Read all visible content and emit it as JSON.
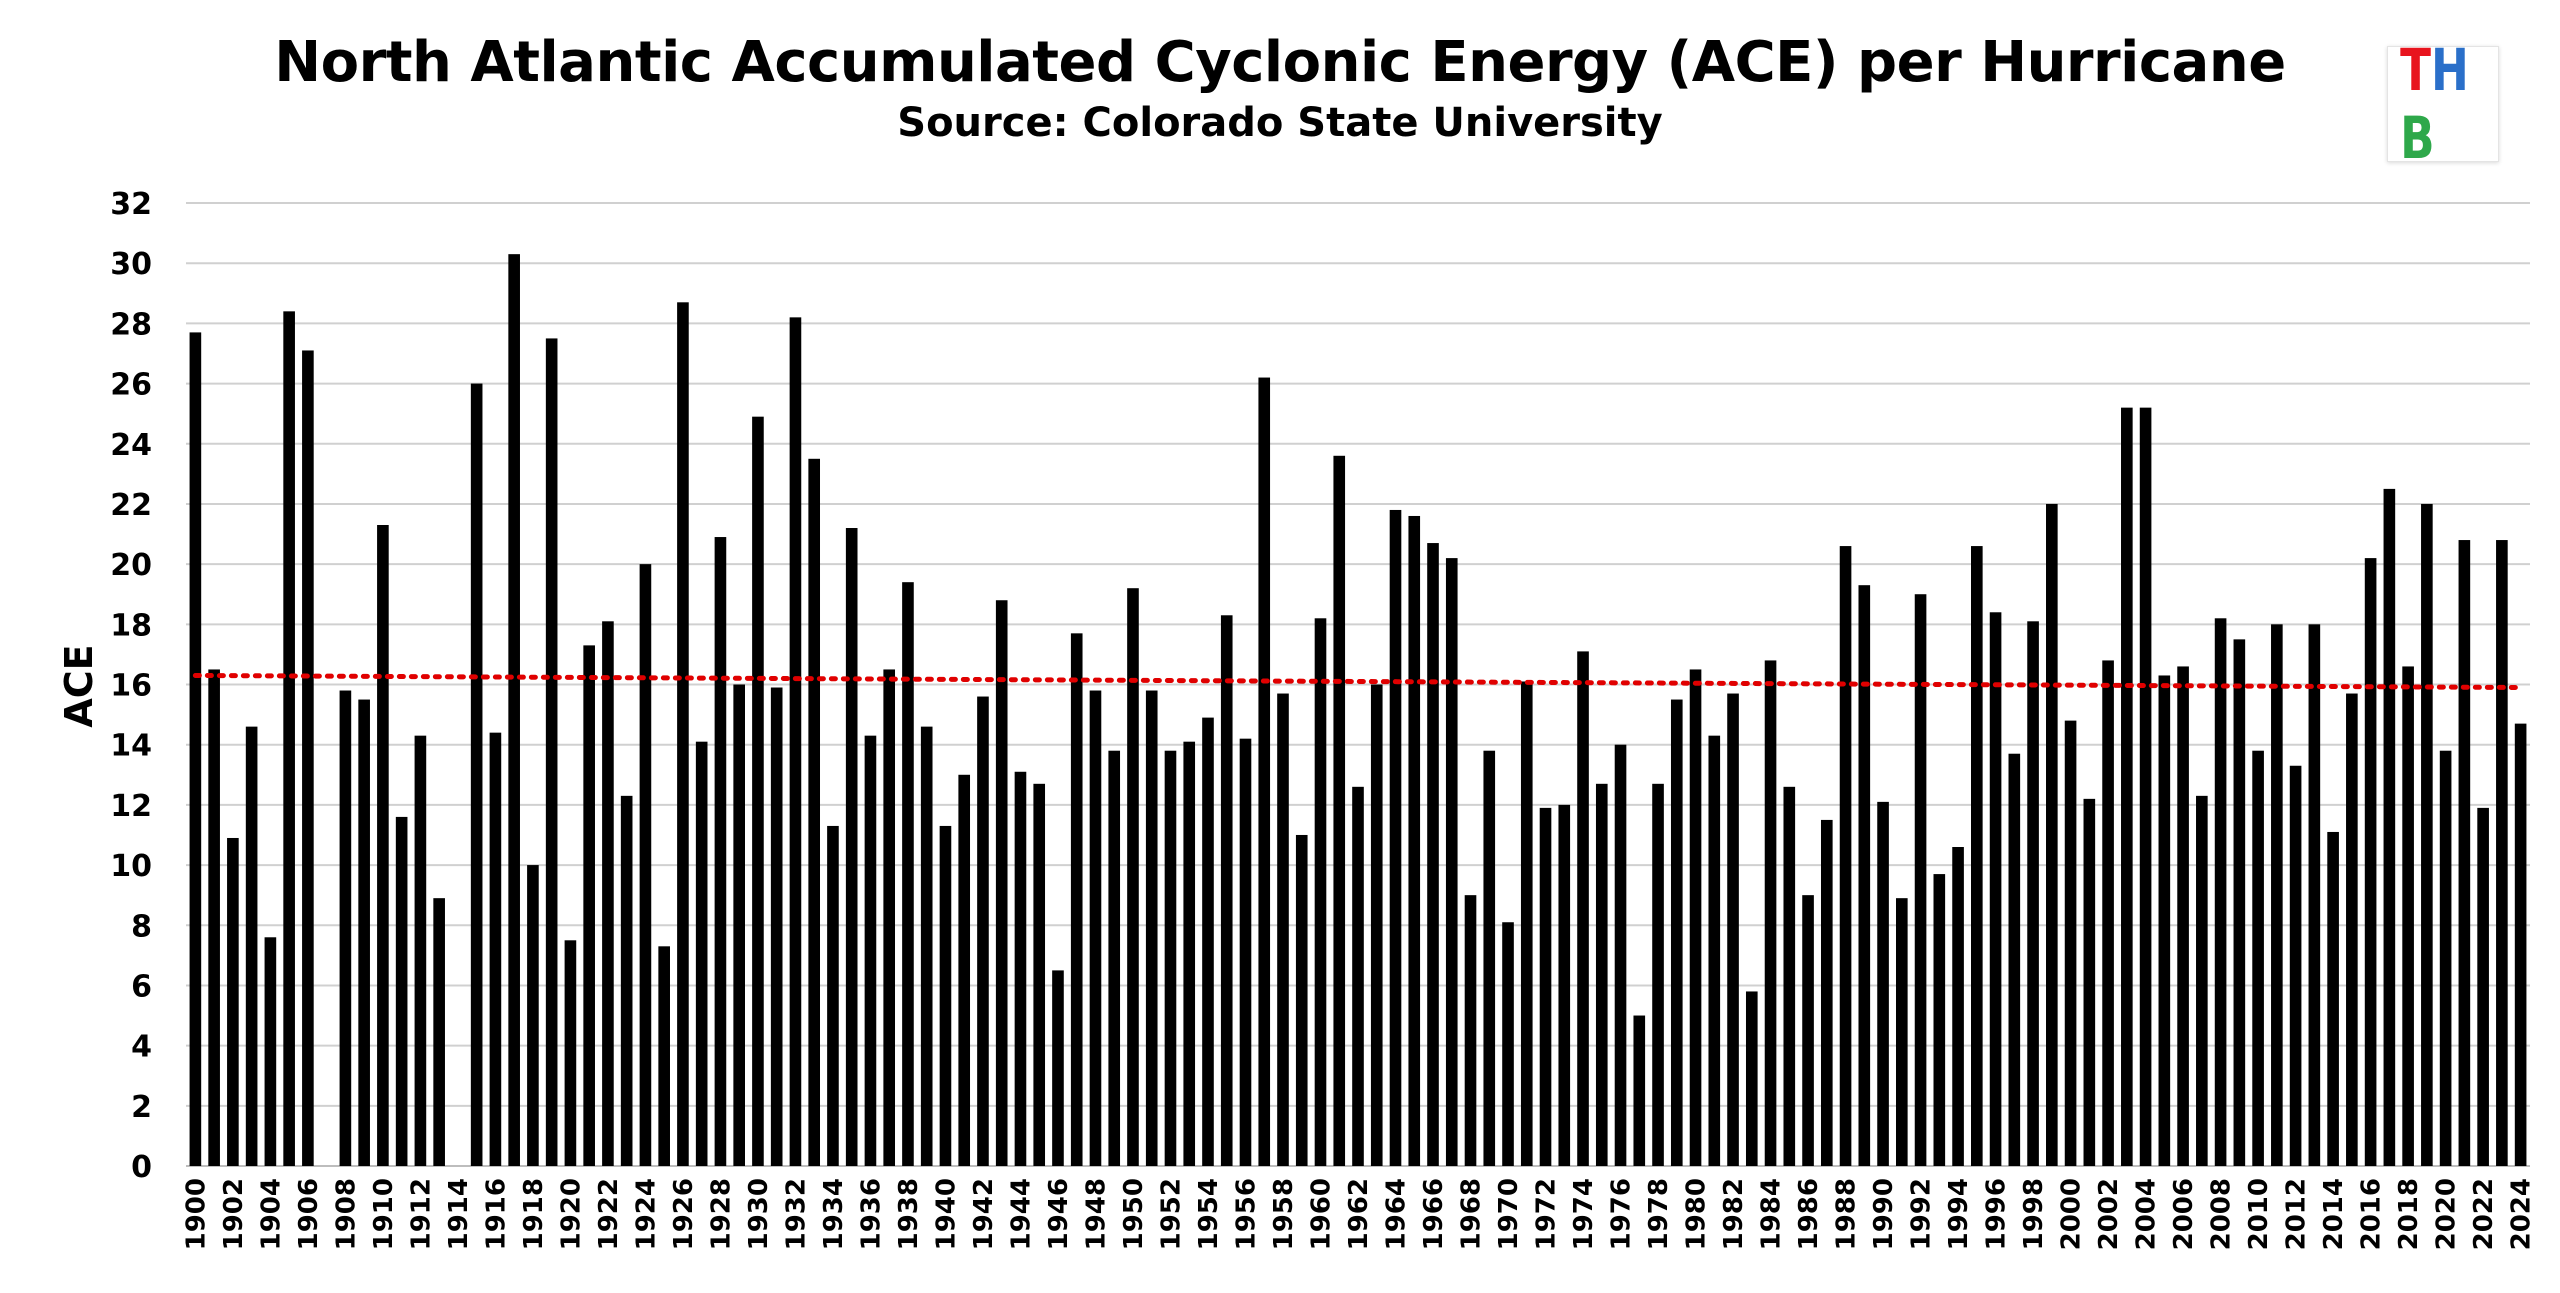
{
  "title": "North Atlantic Accumulated Cyclonic Energy (ACE) per Hurricane",
  "subtitle": "Source: Colorado State University",
  "logo": {
    "letters": [
      {
        "char": "T",
        "color": "#e8141e"
      },
      {
        "char": "H",
        "color": "#2a6fc9"
      },
      {
        "char": "B",
        "color": "#2ea84a"
      }
    ]
  },
  "colors": {
    "bar": "#000000",
    "trendline": "#e00000",
    "gridline": "#d0d0d0"
  },
  "chart_data": {
    "type": "bar",
    "title": "North Atlantic Accumulated Cyclonic Energy (ACE) per Hurricane",
    "subtitle": "Source: Colorado State University",
    "xlabel": "",
    "ylabel": "ACE",
    "ylim": [
      0,
      32
    ],
    "yticks": [
      0,
      2,
      4,
      6,
      8,
      10,
      12,
      14,
      16,
      18,
      20,
      22,
      24,
      26,
      28,
      30,
      32
    ],
    "grid": true,
    "legend": "none",
    "x_tick_every": 2,
    "categories": [
      "1900",
      "1901",
      "1902",
      "1903",
      "1904",
      "1905",
      "1906",
      "1907",
      "1908",
      "1909",
      "1910",
      "1911",
      "1912",
      "1913",
      "1914",
      "1915",
      "1916",
      "1917",
      "1918",
      "1919",
      "1920",
      "1921",
      "1922",
      "1923",
      "1924",
      "1925",
      "1926",
      "1927",
      "1928",
      "1929",
      "1930",
      "1931",
      "1932",
      "1933",
      "1934",
      "1935",
      "1936",
      "1937",
      "1938",
      "1939",
      "1940",
      "1941",
      "1942",
      "1943",
      "1944",
      "1945",
      "1946",
      "1947",
      "1948",
      "1949",
      "1950",
      "1951",
      "1952",
      "1953",
      "1954",
      "1955",
      "1956",
      "1957",
      "1958",
      "1959",
      "1960",
      "1961",
      "1962",
      "1963",
      "1964",
      "1965",
      "1966",
      "1967",
      "1968",
      "1969",
      "1970",
      "1971",
      "1972",
      "1973",
      "1974",
      "1975",
      "1976",
      "1977",
      "1978",
      "1979",
      "1980",
      "1981",
      "1982",
      "1983",
      "1984",
      "1985",
      "1986",
      "1987",
      "1988",
      "1989",
      "1990",
      "1991",
      "1992",
      "1993",
      "1994",
      "1995",
      "1996",
      "1997",
      "1998",
      "1999",
      "2000",
      "2001",
      "2002",
      "2003",
      "2004",
      "2005",
      "2006",
      "2007",
      "2008",
      "2009",
      "2010",
      "2011",
      "2012",
      "2013",
      "2014",
      "2015",
      "2016",
      "2017",
      "2018",
      "2019",
      "2020",
      "2021",
      "2022",
      "2023",
      "2024"
    ],
    "values": [
      27.7,
      16.5,
      10.9,
      14.6,
      7.6,
      28.4,
      27.1,
      0,
      15.8,
      15.5,
      21.3,
      11.6,
      14.3,
      8.9,
      0,
      26.0,
      14.4,
      30.3,
      10.0,
      27.5,
      7.5,
      17.3,
      18.1,
      12.3,
      20.0,
      7.3,
      28.7,
      14.1,
      20.9,
      16.0,
      24.9,
      15.9,
      28.2,
      23.5,
      11.3,
      21.2,
      14.3,
      16.5,
      19.4,
      14.6,
      11.3,
      13.0,
      15.6,
      18.8,
      13.1,
      12.7,
      6.5,
      17.7,
      15.8,
      13.8,
      19.2,
      15.8,
      13.8,
      14.1,
      14.9,
      18.3,
      14.2,
      26.2,
      15.7,
      11.0,
      18.2,
      23.6,
      12.6,
      16.0,
      21.8,
      21.6,
      20.7,
      20.2,
      9.0,
      13.8,
      8.1,
      16.1,
      11.9,
      12.0,
      17.1,
      12.7,
      14.0,
      5.0,
      12.7,
      15.5,
      16.5,
      14.3,
      15.7,
      5.8,
      16.8,
      12.6,
      9.0,
      11.5,
      20.6,
      19.3,
      12.1,
      8.9,
      19.0,
      9.7,
      10.6,
      20.6,
      18.4,
      13.7,
      18.1,
      22.0,
      14.8,
      12.2,
      16.8,
      25.2,
      25.2,
      16.3,
      16.6,
      12.3,
      18.2,
      17.5,
      13.8,
      18.0,
      13.3,
      18.0,
      11.1,
      15.7,
      20.2,
      22.5,
      16.6,
      22.0,
      13.8,
      20.8,
      11.9,
      20.8,
      14.7
    ],
    "trendline": {
      "type": "linear",
      "style": "dotted",
      "color": "#e00000",
      "start": 16.3,
      "end": 15.9
    }
  }
}
